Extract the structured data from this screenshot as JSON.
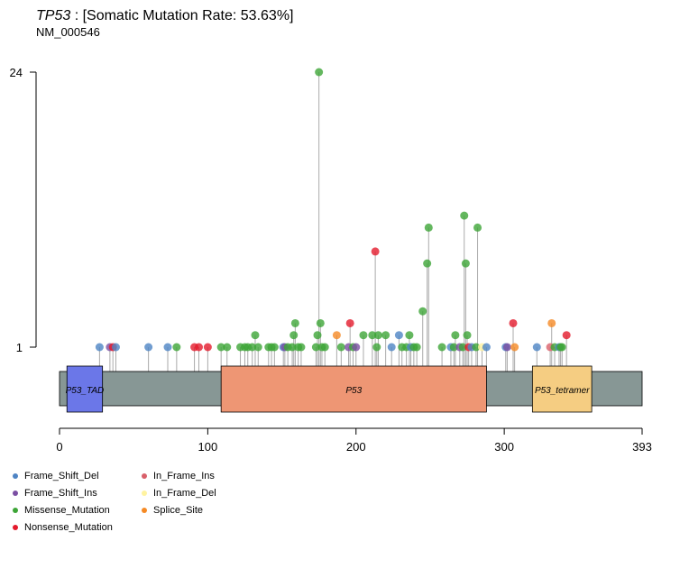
{
  "header": {
    "gene": "TP53",
    "rate_text": " : [Somatic Mutation Rate: 53.63%]",
    "transcript": "NM_000546"
  },
  "colors": {
    "Frame_Shift_Del": "#4E84C4",
    "Frame_Shift_Ins": "#7B4FA3",
    "Missense_Mutation": "#3DA537",
    "Nonsense_Mutation": "#E41A2C",
    "In_Frame_Ins": "#D9606A",
    "In_Frame_Del": "#FFF3A0",
    "Splice_Site": "#F58A25",
    "protein_bar": "#879795",
    "stem": "#AAAAAA"
  },
  "legend": {
    "col1": [
      "Frame_Shift_Del",
      "Frame_Shift_Ins",
      "Missense_Mutation",
      "Nonsense_Mutation"
    ],
    "col2": [
      "In_Frame_Ins",
      "In_Frame_Del",
      "Splice_Site"
    ]
  },
  "chart_data": {
    "type": "lollipop",
    "protein_length": 393,
    "x_ticks": [
      0,
      100,
      200,
      300,
      393
    ],
    "y_ticks": [
      1,
      24
    ],
    "domains": [
      {
        "name": "P53_TAD",
        "start": 5,
        "end": 29,
        "color": "#6B77E8"
      },
      {
        "name": "P53",
        "start": 109,
        "end": 288,
        "color": "#EE9674"
      },
      {
        "name": "P53_tetramer",
        "start": 319,
        "end": 359,
        "color": "#F5CD82"
      }
    ],
    "mutations": [
      {
        "pos": 27,
        "count": 1,
        "type": "Frame_Shift_Del"
      },
      {
        "pos": 34,
        "count": 1,
        "type": "Frame_Shift_Ins"
      },
      {
        "pos": 36,
        "count": 1,
        "type": "Nonsense_Mutation"
      },
      {
        "pos": 38,
        "count": 1,
        "type": "Frame_Shift_Del"
      },
      {
        "pos": 60,
        "count": 1,
        "type": "Frame_Shift_Del"
      },
      {
        "pos": 73,
        "count": 1,
        "type": "Frame_Shift_Del"
      },
      {
        "pos": 79,
        "count": 1,
        "type": "Missense_Mutation"
      },
      {
        "pos": 91,
        "count": 1,
        "type": "Nonsense_Mutation"
      },
      {
        "pos": 94,
        "count": 1,
        "type": "Nonsense_Mutation"
      },
      {
        "pos": 100,
        "count": 1,
        "type": "Nonsense_Mutation"
      },
      {
        "pos": 109,
        "count": 1,
        "type": "Missense_Mutation"
      },
      {
        "pos": 113,
        "count": 1,
        "type": "Missense_Mutation"
      },
      {
        "pos": 122,
        "count": 1,
        "type": "Missense_Mutation"
      },
      {
        "pos": 125,
        "count": 1,
        "type": "Missense_Mutation"
      },
      {
        "pos": 127,
        "count": 1,
        "type": "Missense_Mutation"
      },
      {
        "pos": 130,
        "count": 1,
        "type": "Missense_Mutation"
      },
      {
        "pos": 132,
        "count": 2,
        "type": "Missense_Mutation"
      },
      {
        "pos": 134,
        "count": 1,
        "type": "Missense_Mutation"
      },
      {
        "pos": 141,
        "count": 1,
        "type": "Missense_Mutation"
      },
      {
        "pos": 143,
        "count": 1,
        "type": "Missense_Mutation"
      },
      {
        "pos": 145,
        "count": 1,
        "type": "Missense_Mutation"
      },
      {
        "pos": 151,
        "count": 1,
        "type": "Frame_Shift_Del"
      },
      {
        "pos": 152,
        "count": 1,
        "type": "Frame_Shift_Ins"
      },
      {
        "pos": 154,
        "count": 1,
        "type": "Missense_Mutation"
      },
      {
        "pos": 157,
        "count": 1,
        "type": "Missense_Mutation"
      },
      {
        "pos": 158,
        "count": 2,
        "type": "Missense_Mutation"
      },
      {
        "pos": 159,
        "count": 3,
        "type": "Missense_Mutation"
      },
      {
        "pos": 161,
        "count": 1,
        "type": "Missense_Mutation"
      },
      {
        "pos": 163,
        "count": 1,
        "type": "Missense_Mutation"
      },
      {
        "pos": 173,
        "count": 1,
        "type": "Missense_Mutation"
      },
      {
        "pos": 174,
        "count": 2,
        "type": "Missense_Mutation"
      },
      {
        "pos": 175,
        "count": 24,
        "type": "Missense_Mutation"
      },
      {
        "pos": 176,
        "count": 3,
        "type": "Missense_Mutation"
      },
      {
        "pos": 177,
        "count": 1,
        "type": "Missense_Mutation"
      },
      {
        "pos": 179,
        "count": 1,
        "type": "Missense_Mutation"
      },
      {
        "pos": 187,
        "count": 2,
        "type": "Splice_Site"
      },
      {
        "pos": 190,
        "count": 1,
        "type": "Missense_Mutation"
      },
      {
        "pos": 195,
        "count": 1,
        "type": "Frame_Shift_Ins"
      },
      {
        "pos": 196,
        "count": 3,
        "type": "Nonsense_Mutation"
      },
      {
        "pos": 198,
        "count": 1,
        "type": "Missense_Mutation"
      },
      {
        "pos": 200,
        "count": 1,
        "type": "Frame_Shift_Ins"
      },
      {
        "pos": 205,
        "count": 2,
        "type": "Missense_Mutation"
      },
      {
        "pos": 211,
        "count": 2,
        "type": "Missense_Mutation"
      },
      {
        "pos": 213,
        "count": 9,
        "type": "Nonsense_Mutation"
      },
      {
        "pos": 214,
        "count": 1,
        "type": "Missense_Mutation"
      },
      {
        "pos": 215,
        "count": 2,
        "type": "Missense_Mutation"
      },
      {
        "pos": 220,
        "count": 2,
        "type": "Missense_Mutation"
      },
      {
        "pos": 224,
        "count": 1,
        "type": "Frame_Shift_Del"
      },
      {
        "pos": 229,
        "count": 2,
        "type": "Frame_Shift_Del"
      },
      {
        "pos": 231,
        "count": 1,
        "type": "Missense_Mutation"
      },
      {
        "pos": 234,
        "count": 1,
        "type": "Missense_Mutation"
      },
      {
        "pos": 236,
        "count": 2,
        "type": "Missense_Mutation"
      },
      {
        "pos": 237,
        "count": 1,
        "type": "Frame_Shift_Del"
      },
      {
        "pos": 239,
        "count": 1,
        "type": "Missense_Mutation"
      },
      {
        "pos": 241,
        "count": 1,
        "type": "Missense_Mutation"
      },
      {
        "pos": 245,
        "count": 4,
        "type": "Missense_Mutation"
      },
      {
        "pos": 248,
        "count": 8,
        "type": "Missense_Mutation"
      },
      {
        "pos": 249,
        "count": 11,
        "type": "Missense_Mutation"
      },
      {
        "pos": 258,
        "count": 1,
        "type": "Missense_Mutation"
      },
      {
        "pos": 264,
        "count": 1,
        "type": "Frame_Shift_Del"
      },
      {
        "pos": 266,
        "count": 1,
        "type": "Missense_Mutation"
      },
      {
        "pos": 267,
        "count": 2,
        "type": "Missense_Mutation"
      },
      {
        "pos": 270,
        "count": 1,
        "type": "Frame_Shift_Ins"
      },
      {
        "pos": 272,
        "count": 1,
        "type": "Missense_Mutation"
      },
      {
        "pos": 273,
        "count": 12,
        "type": "Missense_Mutation"
      },
      {
        "pos": 274,
        "count": 8,
        "type": "Missense_Mutation"
      },
      {
        "pos": 275,
        "count": 2,
        "type": "Missense_Mutation"
      },
      {
        "pos": 276,
        "count": 1,
        "type": "Nonsense_Mutation"
      },
      {
        "pos": 278,
        "count": 1,
        "type": "Frame_Shift_Del"
      },
      {
        "pos": 281,
        "count": 1,
        "type": "Missense_Mutation"
      },
      {
        "pos": 282,
        "count": 11,
        "type": "Missense_Mutation"
      },
      {
        "pos": 285,
        "count": 1,
        "type": "In_Frame_Del"
      },
      {
        "pos": 288,
        "count": 1,
        "type": "Frame_Shift_Del"
      },
      {
        "pos": 301,
        "count": 1,
        "type": "Frame_Shift_Del"
      },
      {
        "pos": 302,
        "count": 1,
        "type": "Frame_Shift_Ins"
      },
      {
        "pos": 306,
        "count": 3,
        "type": "Nonsense_Mutation"
      },
      {
        "pos": 307,
        "count": 1,
        "type": "Splice_Site"
      },
      {
        "pos": 322,
        "count": 1,
        "type": "Frame_Shift_Del"
      },
      {
        "pos": 331,
        "count": 1,
        "type": "In_Frame_Ins"
      },
      {
        "pos": 332,
        "count": 3,
        "type": "Splice_Site"
      },
      {
        "pos": 334,
        "count": 1,
        "type": "Missense_Mutation"
      },
      {
        "pos": 337,
        "count": 1,
        "type": "Frame_Shift_Del"
      },
      {
        "pos": 338,
        "count": 1,
        "type": "Missense_Mutation"
      },
      {
        "pos": 339,
        "count": 1,
        "type": "Missense_Mutation"
      },
      {
        "pos": 342,
        "count": 2,
        "type": "Nonsense_Mutation"
      }
    ]
  }
}
